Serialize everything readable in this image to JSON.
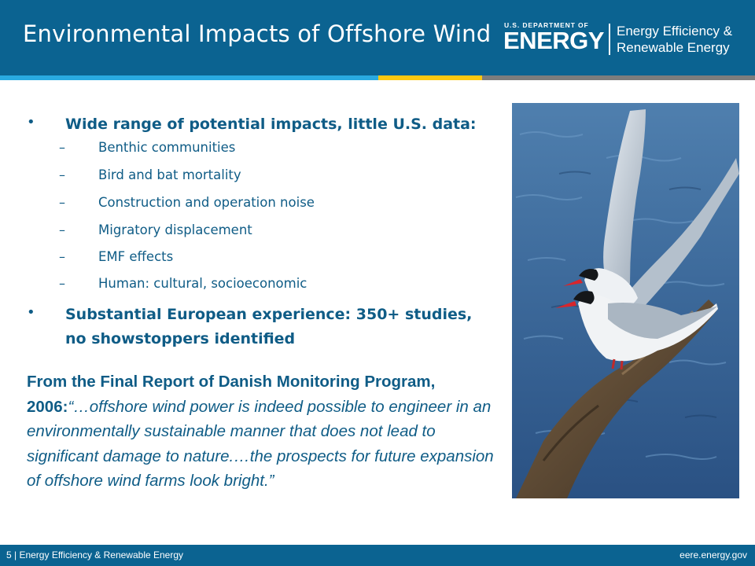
{
  "slide": {
    "title": "Environmental Impacts of Offshore Wind",
    "logo": {
      "top_line": "U.S. DEPARTMENT OF",
      "wordmark": "ENERGY",
      "office_line1": "Energy Efficiency &",
      "office_line2": "Renewable Energy"
    },
    "colors": {
      "header": "#0b6391",
      "stripe_light": "#29aae1",
      "stripe_yellow": "#fdc70f",
      "stripe_gray": "#7d7d7d",
      "text": "#0f5c86"
    }
  },
  "bullets": [
    {
      "text": "Wide range of potential impacts, little U.S. data:",
      "sub": [
        "Benthic communities",
        "Bird and bat mortality",
        "Construction and operation noise",
        "Migratory displacement",
        "EMF effects",
        "Human: cultural, socioeconomic"
      ]
    },
    {
      "text_line1": "Substantial European experience: 350+ studies,",
      "text_line2": "no showstoppers identified"
    }
  ],
  "quote": {
    "source": "From the Final Report of Danish Monitoring Program, 2006:",
    "text": "“…offshore wind power is indeed possible to engineer in an environmentally sustainable manner that does not lead to significant damage to nature.…the prospects for future expansion of offshore wind farms look bright.”"
  },
  "photo": {
    "subject": "two terns perched on a log above blue water"
  },
  "footer": {
    "left": "5 | Energy Efficiency & Renewable Energy",
    "right": "eere.energy.gov"
  }
}
